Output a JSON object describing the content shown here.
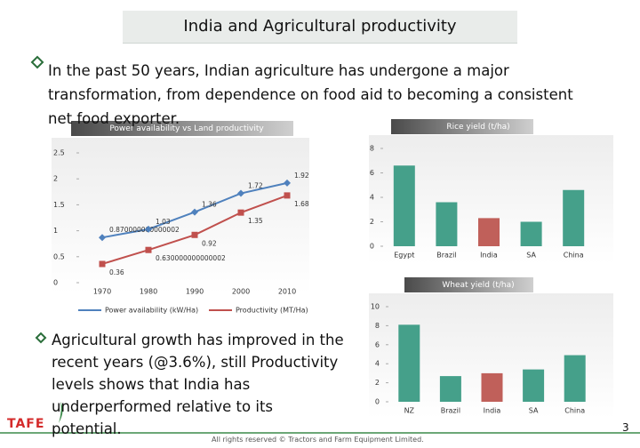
{
  "title": "India and Agricultural productivity",
  "bullets": [
    "In the past 50 years, Indian agriculture has undergone a major transformation, from dependence on food aid to becoming a consistent net food exporter.",
    "Agricultural growth has improved in the recent years (@3.6%), still Productivity levels shows that India has underperformed relative to its potential."
  ],
  "logo": "TAFE",
  "footer": "All rights reserved © Tractors and Farm Equipment Limited.",
  "page_number": "3",
  "chart_data": [
    {
      "type": "line",
      "title": "Power availability vs Land productivity",
      "categories": [
        "1970",
        "1980",
        "1990",
        "2000",
        "2010"
      ],
      "series": [
        {
          "name": "Power availability (kW/Ha)",
          "color": "#4f81bd",
          "values": [
            0.87,
            1.03,
            1.36,
            1.72,
            1.92
          ],
          "value_labels": [
            "0.870000000000002",
            "1.03",
            "1.36",
            "1.72",
            "1.92"
          ]
        },
        {
          "name": "Productivity (MT/Ha)",
          "color": "#c0504d",
          "values": [
            0.36,
            0.63,
            0.92,
            1.35,
            1.68
          ],
          "value_labels": [
            "0.36",
            "0.630000000000002",
            "0.92",
            "1.35",
            "1.68"
          ]
        }
      ],
      "ylim": [
        0,
        2.5
      ],
      "yticks": [
        0,
        0.5,
        1,
        1.5,
        2,
        2.5
      ]
    },
    {
      "type": "bar",
      "title": "Rice yield (t/ha)",
      "categories": [
        "Egypt",
        "Brazil",
        "India",
        "SA",
        "China"
      ],
      "values": [
        6.6,
        3.6,
        2.3,
        2,
        4.6
      ],
      "colors": [
        "#45a08a",
        "#45a08a",
        "#c0605a",
        "#45a08a",
        "#45a08a"
      ],
      "ylim": [
        0,
        8
      ],
      "yticks": [
        0,
        2,
        4,
        6,
        8
      ]
    },
    {
      "type": "bar",
      "title": "Wheat yield (t/ha)",
      "categories": [
        "NZ",
        "Brazil",
        "India",
        "SA",
        "China"
      ],
      "values": [
        8.1,
        2.7,
        3,
        3.4,
        4.9
      ],
      "colors": [
        "#45a08a",
        "#45a08a",
        "#c0605a",
        "#45a08a",
        "#45a08a"
      ],
      "ylim": [
        0,
        10
      ],
      "yticks": [
        0,
        2,
        4,
        6,
        8,
        10
      ]
    }
  ]
}
